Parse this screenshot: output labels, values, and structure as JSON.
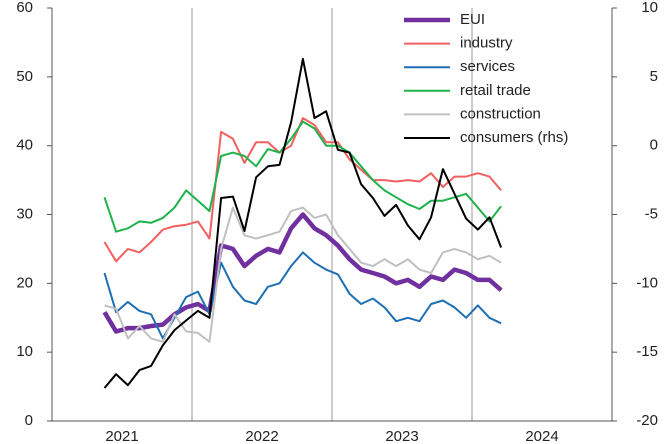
{
  "chart_data": {
    "type": "line",
    "x": [
      2021.375,
      2021.458,
      2021.542,
      2021.625,
      2021.708,
      2021.792,
      2021.875,
      2021.958,
      2022.042,
      2022.125,
      2022.208,
      2022.292,
      2022.375,
      2022.458,
      2022.542,
      2022.625,
      2022.708,
      2022.792,
      2022.875,
      2022.958,
      2023.042,
      2023.125,
      2023.208,
      2023.292,
      2023.375,
      2023.458,
      2023.542,
      2023.625,
      2023.708,
      2023.792,
      2023.875,
      2023.958,
      2024.042,
      2024.125,
      2024.208
    ],
    "xlim": [
      2021,
      2025
    ],
    "xticks": [
      {
        "value": 2021.5,
        "label": "2021"
      },
      {
        "value": 2022.5,
        "label": "2022"
      },
      {
        "value": 2023.5,
        "label": "2023"
      },
      {
        "value": 2024.5,
        "label": "2024"
      }
    ],
    "xgrid": [
      2022,
      2023,
      2024
    ],
    "ylim": [
      0,
      60
    ],
    "yticks": [
      0,
      10,
      20,
      30,
      40,
      50,
      60
    ],
    "y2lim": [
      -20,
      10
    ],
    "y2ticks": [
      -20,
      -15,
      -10,
      -5,
      0,
      5,
      10
    ],
    "legend": "upper right",
    "series": [
      {
        "name": "EUI",
        "color": "#7030a0",
        "values": [
          15.8,
          13,
          13.5,
          13.5,
          13.8,
          14,
          15.5,
          16.5,
          17,
          16,
          25.5,
          25,
          22.5,
          24,
          25,
          24.5,
          28,
          30,
          28,
          27,
          25.5,
          23.5,
          22,
          21.5,
          21,
          20,
          20.5,
          19.5,
          21,
          20.5,
          22,
          21.5,
          20.5,
          20.5,
          19
        ]
      },
      {
        "name": "industry",
        "color": "#f06060",
        "values": [
          26,
          23.2,
          25,
          24.5,
          26,
          27.8,
          28.3,
          28.5,
          29,
          26.5,
          42,
          41,
          37.5,
          40.5,
          40.5,
          39,
          40,
          44,
          43,
          40.5,
          40.5,
          38,
          36.5,
          35,
          35,
          34.8,
          35,
          34.8,
          36,
          34,
          35.5,
          35.5,
          36,
          35.5,
          33.5
        ]
      },
      {
        "name": "services",
        "color": "#1f6fb5",
        "values": [
          21.5,
          15.8,
          17.3,
          16,
          15.5,
          12,
          15,
          18,
          18.8,
          15.5,
          23,
          19.5,
          17.5,
          17,
          19.5,
          20,
          22.5,
          24.5,
          23,
          22,
          21.3,
          18.5,
          17,
          17.8,
          16.5,
          14.5,
          15,
          14.5,
          17,
          17.5,
          16.5,
          15,
          16.8,
          15,
          14.2
        ]
      },
      {
        "name": "retail trade",
        "color": "#1db34a",
        "values": [
          32.5,
          27.5,
          28,
          29,
          28.8,
          29.5,
          31,
          33.5,
          32,
          30.5,
          38.5,
          39,
          38.5,
          37,
          39.5,
          39,
          41,
          43.5,
          42.5,
          40,
          40,
          39,
          37,
          35,
          33.5,
          32.5,
          31.5,
          30.8,
          32,
          32,
          32.5,
          33,
          31,
          29,
          31.2
        ]
      },
      {
        "name": "construction",
        "color": "#c0c0c0",
        "values": [
          16.8,
          16.3,
          12,
          13.8,
          12,
          11.5,
          15.5,
          13,
          12.8,
          11.5,
          25,
          31,
          27,
          26.5,
          27,
          27.5,
          30.5,
          31,
          29.5,
          30,
          27,
          25,
          23,
          22.5,
          23.5,
          22.5,
          23.5,
          22,
          21.5,
          24.5,
          25,
          24.5,
          23.5,
          24,
          23
        ]
      },
      {
        "name": "consumers (rhs)",
        "color": "#000000",
        "axis": "y2",
        "values": [
          -17.6,
          -16.6,
          -17.4,
          -16.3,
          -16,
          -14.5,
          -13.4,
          -12.7,
          -12,
          -12.5,
          -3.8,
          -3.7,
          -6.2,
          -2.3,
          -1.5,
          -1.4,
          1.7,
          6.3,
          2,
          2.5,
          -0.3,
          -0.5,
          -2.8,
          -3.8,
          -5.1,
          -4.3,
          -5.8,
          -6.8,
          -5.2,
          -1.7,
          -3.5,
          -5.3,
          -6.1,
          -5.2,
          -7.4
        ]
      }
    ]
  }
}
